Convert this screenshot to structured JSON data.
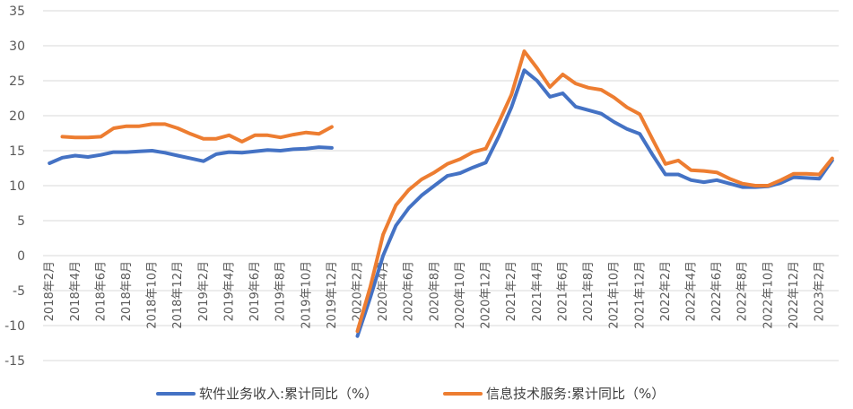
{
  "chart_data": {
    "type": "line",
    "title": "",
    "xlabel": "",
    "ylabel": "",
    "ylim": [
      -15,
      35
    ],
    "yticks": [
      -15,
      -10,
      -5,
      0,
      5,
      10,
      15,
      20,
      25,
      30,
      35
    ],
    "grid": true,
    "legend_position": "bottom",
    "categories": [
      "2018年2月",
      "2018年3月",
      "2018年4月",
      "2018年5月",
      "2018年6月",
      "2018年7月",
      "2018年8月",
      "2018年9月",
      "2018年10月",
      "2018年11月",
      "2018年12月",
      "2019年1月",
      "2019年2月",
      "2019年3月",
      "2019年4月",
      "2019年5月",
      "2019年6月",
      "2019年7月",
      "2019年8月",
      "2019年9月",
      "2019年10月",
      "2019年11月",
      "2019年12月",
      "2020年1月",
      "2020年2月",
      "2020年3月",
      "2020年4月",
      "2020年5月",
      "2020年6月",
      "2020年7月",
      "2020年8月",
      "2020年9月",
      "2020年10月",
      "2020年11月",
      "2020年12月",
      "2021年1月",
      "2021年2月",
      "2021年3月",
      "2021年4月",
      "2021年5月",
      "2021年6月",
      "2021年7月",
      "2021年8月",
      "2021年9月",
      "2021年10月",
      "2021年11月",
      "2021年12月",
      "2022年1月",
      "2022年2月",
      "2022年3月",
      "2022年4月",
      "2022年5月",
      "2022年6月",
      "2022年7月",
      "2022年8月",
      "2022年9月",
      "2022年10月",
      "2022年11月",
      "2022年12月",
      "2023年1月",
      "2023年2月",
      "2023年3月"
    ],
    "tick_labels": [
      "2018年2月",
      "2018年4月",
      "2018年6月",
      "2018年8月",
      "2018年10月",
      "2018年12月",
      "2019年2月",
      "2019年4月",
      "2019年6月",
      "2019年8月",
      "2019年10月",
      "2019年12月",
      "2020年2月",
      "2020年4月",
      "2020年6月",
      "2020年8月",
      "2020年10月",
      "2020年12月",
      "2021年2月",
      "2021年4月",
      "2021年6月",
      "2021年8月",
      "2021年10月",
      "2021年12月",
      "2022年2月",
      "2022年4月",
      "2022年6月",
      "2022年8月",
      "2022年10月",
      "2022年12月",
      "2023年2月"
    ],
    "series": [
      {
        "name": "软件业务收入:累计同比（%）",
        "color": "#4472c4",
        "values": [
          13.2,
          14.0,
          14.3,
          14.1,
          14.4,
          14.8,
          14.8,
          14.9,
          15.0,
          14.7,
          14.3,
          13.9,
          13.5,
          14.5,
          14.8,
          14.7,
          14.9,
          15.1,
          15.0,
          15.2,
          15.3,
          15.5,
          15.4,
          null,
          -11.5,
          -6.0,
          0.0,
          4.3,
          6.8,
          8.6,
          10.0,
          11.4,
          11.8,
          12.6,
          13.3,
          17.0,
          21.2,
          26.5,
          25.0,
          22.7,
          23.2,
          21.3,
          20.8,
          20.3,
          19.1,
          18.1,
          17.4,
          14.4,
          11.6,
          11.6,
          10.8,
          10.5,
          10.8,
          10.3,
          9.8,
          9.8,
          9.9,
          10.4,
          11.2,
          11.1,
          11.0,
          13.6
        ]
      },
      {
        "name": "信息技术服务:累计同比（%）",
        "color": "#ed7d31",
        "values": [
          null,
          17.0,
          16.9,
          16.9,
          17.0,
          18.2,
          18.5,
          18.5,
          18.8,
          18.8,
          18.2,
          17.4,
          16.7,
          16.7,
          17.2,
          16.3,
          17.2,
          17.2,
          16.9,
          17.3,
          17.6,
          17.4,
          18.4,
          null,
          -10.8,
          -4.5,
          3.0,
          7.2,
          9.4,
          10.9,
          11.9,
          13.1,
          13.8,
          14.8,
          15.3,
          19.0,
          23.0,
          29.2,
          26.8,
          24.1,
          25.9,
          24.6,
          24.0,
          23.7,
          22.6,
          21.2,
          20.2,
          16.6,
          13.1,
          13.6,
          12.2,
          12.1,
          11.9,
          11.0,
          10.3,
          10.0,
          10.0,
          10.8,
          11.7,
          11.7,
          11.6,
          13.9
        ]
      }
    ]
  }
}
